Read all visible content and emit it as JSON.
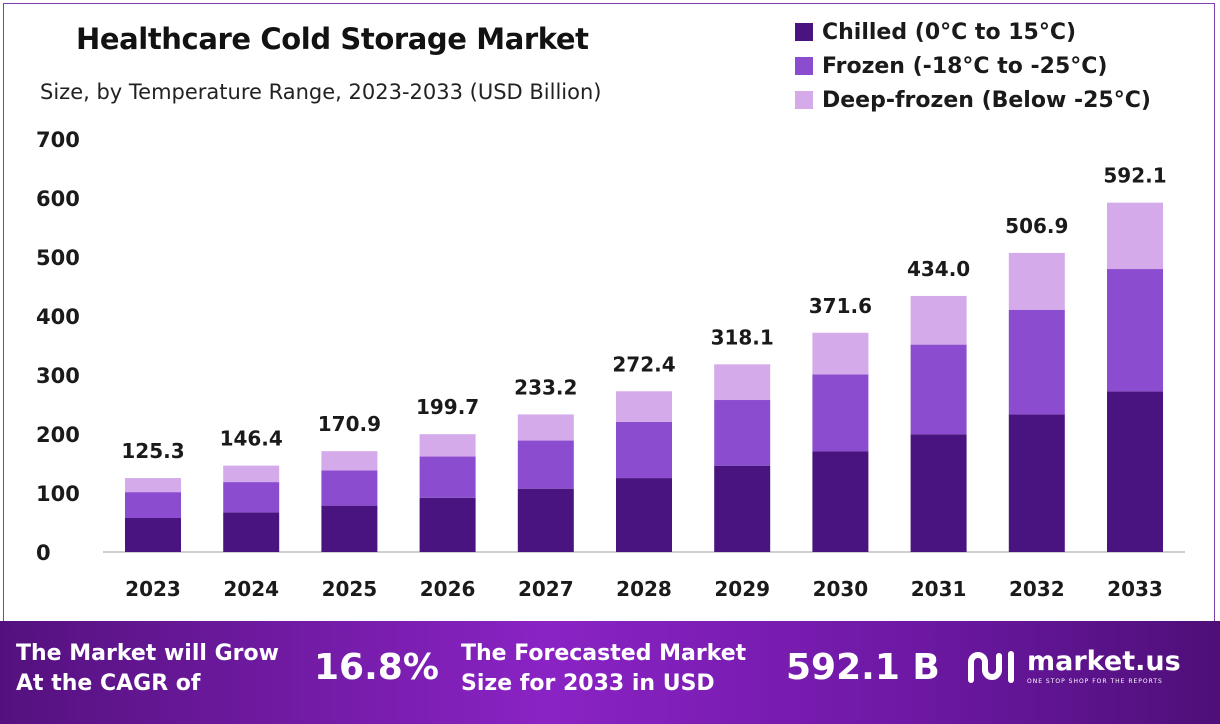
{
  "colors": {
    "chilled": "#4a1480",
    "frozen": "#8c4ccf",
    "deep_frozen": "#d5aaea",
    "axis": "#cfcfcf",
    "text": "#1a1a1a"
  },
  "chart_data": {
    "type": "bar",
    "stacked": true,
    "title": "Healthcare Cold Storage Market",
    "subtitle": "Size, by Temperature Range, 2023-2033 (USD Billion)",
    "xlabel": "",
    "ylabel": "",
    "ylim": [
      0,
      700
    ],
    "yticks": [
      0,
      100,
      200,
      300,
      400,
      500,
      600,
      700
    ],
    "grid": false,
    "legend_position": "top-right",
    "categories": [
      "2023",
      "2024",
      "2025",
      "2026",
      "2027",
      "2028",
      "2029",
      "2030",
      "2031",
      "2032",
      "2033"
    ],
    "series": [
      {
        "name": "Chilled (0°C to 15°C)",
        "color_key": "chilled",
        "values": [
          57.6,
          67.3,
          78.6,
          91.9,
          107.3,
          125.3,
          146.3,
          170.9,
          199.6,
          233.2,
          272.4
        ]
      },
      {
        "name": "Frozen (-18°C to -25°C)",
        "color_key": "frozen",
        "values": [
          43.9,
          51.2,
          59.8,
          69.9,
          81.6,
          95.3,
          111.3,
          130.1,
          151.9,
          177.4,
          207.2
        ]
      },
      {
        "name": "Deep-frozen (Below -25°C)",
        "color_key": "deep_frozen",
        "values": [
          23.8,
          27.9,
          32.5,
          37.9,
          44.3,
          51.8,
          60.5,
          70.6,
          82.5,
          96.3,
          112.5
        ]
      }
    ],
    "totals": [
      "125.3",
      "146.4",
      "170.9",
      "199.7",
      "233.2",
      "272.4",
      "318.1",
      "371.6",
      "434.0",
      "506.9",
      "592.1"
    ]
  },
  "banner": {
    "cagr_line1": "The Market will Grow",
    "cagr_line2": "At the CAGR of",
    "cagr_value": "16.8%",
    "forecast_line1": "The Forecasted Market",
    "forecast_line2": "Size for 2033 in USD",
    "forecast_value": "592.1 B",
    "brand_name": "market.us",
    "brand_tagline": "ONE STOP SHOP FOR THE REPORTS",
    "brand_icon": "market-us-logo-icon"
  }
}
